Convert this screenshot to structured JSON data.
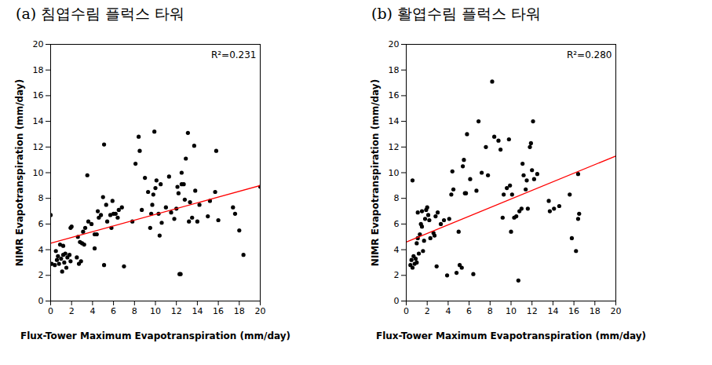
{
  "chart_data": [
    {
      "type": "scatter",
      "title": "(a) 침엽수림 플럭스 타워",
      "x_label": "Flux-Tower Maximum Evapotranspiration (mm/day)",
      "y_label": "NIMR Evapotranspiration (mm/day)",
      "annotation": "R²=0.231",
      "xlim": [
        0,
        20
      ],
      "ylim": [
        0,
        20
      ],
      "xticks": [
        0,
        2,
        4,
        6,
        8,
        10,
        12,
        14,
        16,
        18,
        20
      ],
      "yticks": [
        0,
        2,
        4,
        6,
        8,
        10,
        12,
        14,
        16,
        18,
        20
      ],
      "series": [
        {
          "type": "scatter",
          "color": "#000000",
          "marker": "circle",
          "x": [
            0,
            0.1,
            0.4,
            0.6,
            0.5,
            0.7,
            0.8,
            0.9,
            1.0,
            1.1,
            1.2,
            1.3,
            1.4,
            1.5,
            1.6,
            1.2,
            1.8,
            1.9,
            2.0,
            1.9,
            2.5,
            2.6,
            2.7,
            2.9,
            2.8,
            3.0,
            3.1,
            3.2,
            3.3,
            3.5,
            3.6,
            3.9,
            4.2,
            4.2,
            4.4,
            4.5,
            4.6,
            4.8,
            5.0,
            5.1,
            5.1,
            5.3,
            5.4,
            5.7,
            5.8,
            5.9,
            6.0,
            6.2,
            6.4,
            6.5,
            6.8,
            7.0,
            7.8,
            8.1,
            8.4,
            8.5,
            8.7,
            9.0,
            9.3,
            9.5,
            9.6,
            9.7,
            9.8,
            9.9,
            10.0,
            10.1,
            10.3,
            10.4,
            10.5,
            10.6,
            11.0,
            11.3,
            11.5,
            11.8,
            12.0,
            12.1,
            12.2,
            12.3,
            12.4,
            12.5,
            12.5,
            12.7,
            12.8,
            12.9,
            13.1,
            13.2,
            13.3,
            13.5,
            13.7,
            13.8,
            14.0,
            14.2,
            15.0,
            15.2,
            15.7,
            15.8,
            16.0,
            17.4,
            17.6,
            18.0,
            18.4,
            20.0
          ],
          "values": [
            6.7,
            2.9,
            2.8,
            3.2,
            3.9,
            3.5,
            2.9,
            4.4,
            3.3,
            2.3,
            3.6,
            3.0,
            3.7,
            2.6,
            3.4,
            4.3,
            3.6,
            5.7,
            5.8,
            3.1,
            3.4,
            5.0,
            2.9,
            3.1,
            4.6,
            4.5,
            5.4,
            4.4,
            5.7,
            9.8,
            6.2,
            6.0,
            4.1,
            5.2,
            5.2,
            7.0,
            6.5,
            6.7,
            8.1,
            12.2,
            2.8,
            7.5,
            6.2,
            6.7,
            5.7,
            7.8,
            6.8,
            6.8,
            6.5,
            7.1,
            7.3,
            2.7,
            6.2,
            10.7,
            12.8,
            11.7,
            7.1,
            9.6,
            8.5,
            5.7,
            6.8,
            7.5,
            8.3,
            13.2,
            8.8,
            9.4,
            6.8,
            5.1,
            9.1,
            6.1,
            7.3,
            9.7,
            6.9,
            6.4,
            7.2,
            8.9,
            8.4,
            2.1,
            2.1,
            10.0,
            9.1,
            9.1,
            7.9,
            11.1,
            13.1,
            6.2,
            7.7,
            6.5,
            12.1,
            8.6,
            6.2,
            7.5,
            6.6,
            7.8,
            8.5,
            11.7,
            6.3,
            7.3,
            6.8,
            5.5,
            3.6,
            8.9
          ]
        },
        {
          "type": "line",
          "color": "#ff0000",
          "line_style": "solid",
          "x": [
            0,
            20
          ],
          "values": [
            4.5,
            9.0
          ]
        }
      ]
    },
    {
      "type": "scatter",
      "title": "(b) 활엽수림 플럭스 타워",
      "x_label": "Flux-Tower Maximum Evapotranspiration (mm/day)",
      "y_label": "NIMR Evapotranspiration (mm/day)",
      "annotation": "R²=0.280",
      "xlim": [
        0,
        20
      ],
      "ylim": [
        0,
        20
      ],
      "xticks": [
        0,
        2,
        4,
        6,
        8,
        10,
        12,
        14,
        16,
        18,
        20
      ],
      "yticks": [
        0,
        2,
        4,
        6,
        8,
        10,
        12,
        14,
        16,
        18,
        20
      ],
      "series": [
        {
          "type": "scatter",
          "color": "#000000",
          "marker": "circle",
          "x": [
            0.4,
            0.5,
            0.6,
            0.6,
            0.7,
            0.8,
            0.9,
            1.0,
            1.0,
            1.1,
            1.1,
            1.2,
            1.3,
            1.4,
            1.5,
            1.5,
            1.6,
            1.7,
            1.8,
            1.9,
            2.0,
            2.1,
            2.2,
            2.3,
            2.6,
            2.7,
            2.8,
            2.9,
            3.0,
            3.3,
            3.6,
            3.9,
            4.1,
            4.3,
            4.4,
            4.5,
            4.8,
            5.0,
            5.1,
            5.3,
            5.4,
            5.5,
            5.6,
            5.7,
            5.8,
            6.1,
            6.4,
            6.7,
            6.9,
            7.2,
            7.6,
            7.8,
            8.2,
            8.4,
            8.8,
            9.0,
            9.2,
            9.3,
            9.6,
            9.8,
            9.9,
            10.0,
            10.1,
            10.3,
            10.5,
            10.7,
            10.8,
            11.0,
            11.1,
            11.2,
            11.4,
            11.5,
            11.6,
            11.8,
            11.9,
            12.0,
            12.1,
            12.2,
            12.5,
            13.6,
            13.7,
            14.1,
            14.6,
            15.6,
            15.8,
            16.2,
            16.4,
            16.4,
            16.5
          ],
          "values": [
            2.8,
            3.2,
            9.4,
            2.6,
            3.5,
            2.9,
            3.3,
            4.5,
            3.0,
            4.9,
            6.9,
            3.7,
            5.2,
            6.0,
            5.8,
            7.0,
            3.9,
            4.7,
            6.4,
            7.1,
            7.3,
            6.7,
            6.3,
            4.9,
            5.3,
            5.1,
            6.6,
            2.7,
            6.9,
            6.0,
            6.3,
            2.0,
            6.4,
            8.3,
            10.1,
            8.7,
            2.2,
            5.4,
            2.8,
            2.6,
            10.5,
            11.0,
            8.4,
            8.4,
            13.0,
            9.5,
            2.1,
            8.6,
            14.0,
            10.0,
            12.0,
            9.8,
            17.1,
            12.8,
            12.5,
            11.8,
            6.5,
            8.3,
            8.8,
            12.6,
            9.0,
            5.4,
            8.3,
            6.5,
            6.6,
            1.6,
            7.0,
            7.2,
            10.7,
            9.8,
            8.7,
            9.4,
            7.2,
            12.0,
            12.3,
            10.2,
            14.0,
            9.5,
            9.9,
            7.8,
            7.0,
            7.2,
            7.4,
            8.3,
            4.9,
            3.9,
            9.9,
            6.4,
            6.8
          ]
        },
        {
          "type": "line",
          "color": "#ff0000",
          "line_style": "solid",
          "x": [
            0,
            20
          ],
          "values": [
            4.6,
            11.3
          ]
        }
      ]
    }
  ]
}
